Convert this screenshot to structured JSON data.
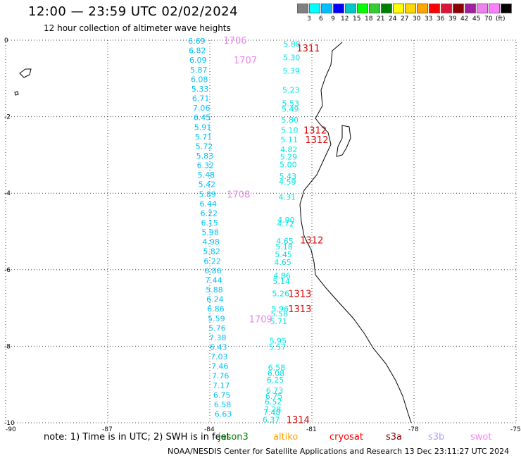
{
  "title": "12:00 — 23:59 UTC 02/02/2024",
  "subtitle": "12 hour collection of altimeter wave heights",
  "legend": {
    "unit": "(ft)",
    "colors": [
      "#808080",
      "#00ffff",
      "#00bfff",
      "#0000ff",
      "#00c8c8",
      "#00ff00",
      "#32cd32",
      "#008000",
      "#ffff00",
      "#ffd700",
      "#ffa500",
      "#ff0000",
      "#dc143c",
      "#8b0000",
      "#a020a0",
      "#ee82ee",
      "#ff80ff",
      "#000000"
    ],
    "labels": [
      "3",
      "6",
      "9",
      "12",
      "15",
      "18",
      "21",
      "24",
      "27",
      "30",
      "33",
      "36",
      "39",
      "42",
      "45",
      "70"
    ]
  },
  "axes": {
    "x_ticks": [
      "-90",
      "-87",
      "-84",
      "-81",
      "-78",
      "-75"
    ],
    "y_ticks": [
      "0",
      "-2",
      "-4",
      "-6",
      "-8",
      "-10"
    ]
  },
  "tracks": [
    {
      "satellite": "jason3",
      "color": "#00bfff",
      "points": [
        {
          "lon": -84.35,
          "lat": -0.02,
          "v": "6.69"
        },
        {
          "lon": -84.33,
          "lat": -0.27,
          "v": "6.82"
        },
        {
          "lon": -84.31,
          "lat": -0.52,
          "v": "6.09"
        },
        {
          "lon": -84.29,
          "lat": -0.77,
          "v": "5.87"
        },
        {
          "lon": -84.27,
          "lat": -1.02,
          "v": "6.08"
        },
        {
          "lon": -84.25,
          "lat": -1.27,
          "v": "5.33"
        },
        {
          "lon": -84.23,
          "lat": -1.52,
          "v": "6.71"
        },
        {
          "lon": -84.21,
          "lat": -1.77,
          "v": "7.06"
        },
        {
          "lon": -84.19,
          "lat": -2.02,
          "v": "6.45"
        },
        {
          "lon": -84.17,
          "lat": -2.27,
          "v": "5.91"
        },
        {
          "lon": -84.15,
          "lat": -2.52,
          "v": "5.71"
        },
        {
          "lon": -84.13,
          "lat": -2.77,
          "v": "5.72"
        },
        {
          "lon": -84.11,
          "lat": -3.02,
          "v": "5.83"
        },
        {
          "lon": -84.09,
          "lat": -3.27,
          "v": "6.32"
        },
        {
          "lon": -84.07,
          "lat": -3.52,
          "v": "5.48"
        },
        {
          "lon": -84.05,
          "lat": -3.77,
          "v": "5.42"
        },
        {
          "lon": -84.03,
          "lat": -4.02,
          "v": "5.89"
        },
        {
          "lon": -84.01,
          "lat": -4.27,
          "v": "6.44"
        },
        {
          "lon": -83.99,
          "lat": -4.52,
          "v": "6.22"
        },
        {
          "lon": -83.97,
          "lat": -4.77,
          "v": "6.15"
        },
        {
          "lon": -83.95,
          "lat": -5.02,
          "v": "5.98"
        },
        {
          "lon": -83.93,
          "lat": -5.27,
          "v": "4.98"
        },
        {
          "lon": -83.91,
          "lat": -5.52,
          "v": "5.82"
        },
        {
          "lon": -83.89,
          "lat": -5.77,
          "v": "6.22"
        },
        {
          "lon": -83.87,
          "lat": -6.02,
          "v": "6.86"
        },
        {
          "lon": -83.85,
          "lat": -6.27,
          "v": "7.44"
        },
        {
          "lon": -83.83,
          "lat": -6.52,
          "v": "5.88"
        },
        {
          "lon": -83.81,
          "lat": -6.77,
          "v": "6.24"
        },
        {
          "lon": -83.79,
          "lat": -7.02,
          "v": "6.86"
        },
        {
          "lon": -83.77,
          "lat": -7.27,
          "v": "5.59"
        },
        {
          "lon": -83.75,
          "lat": -7.52,
          "v": "5.76"
        },
        {
          "lon": -83.73,
          "lat": -7.77,
          "v": "7.38"
        },
        {
          "lon": -83.71,
          "lat": -8.02,
          "v": "6.43"
        },
        {
          "lon": -83.69,
          "lat": -8.27,
          "v": "7.03"
        },
        {
          "lon": -83.67,
          "lat": -8.52,
          "v": "7.46"
        },
        {
          "lon": -83.65,
          "lat": -8.77,
          "v": "7.76"
        },
        {
          "lon": -83.63,
          "lat": -9.02,
          "v": "7.17"
        },
        {
          "lon": -83.61,
          "lat": -9.27,
          "v": "6.75"
        },
        {
          "lon": -83.59,
          "lat": -9.52,
          "v": "6.58"
        },
        {
          "lon": -83.57,
          "lat": -9.77,
          "v": "6.63"
        }
      ]
    },
    {
      "satellite": "altika",
      "color": "#00e5e5",
      "points": [
        {
          "lon": -81.55,
          "lat": -0.1,
          "v": "5.88"
        },
        {
          "lon": -81.56,
          "lat": -0.45,
          "v": "5.30"
        },
        {
          "lon": -81.57,
          "lat": -0.8,
          "v": "5.39"
        },
        {
          "lon": -81.58,
          "lat": -1.3,
          "v": "5.23"
        },
        {
          "lon": -81.59,
          "lat": -1.65,
          "v": "5.53"
        },
        {
          "lon": -81.6,
          "lat": -1.8,
          "v": "5.49"
        },
        {
          "lon": -81.61,
          "lat": -2.08,
          "v": "5.80"
        },
        {
          "lon": -81.62,
          "lat": -2.35,
          "v": "5.10"
        },
        {
          "lon": -81.63,
          "lat": -2.6,
          "v": "5.11"
        },
        {
          "lon": -81.64,
          "lat": -2.85,
          "v": "4.82"
        },
        {
          "lon": -81.65,
          "lat": -3.05,
          "v": "5.29"
        },
        {
          "lon": -81.66,
          "lat": -3.25,
          "v": "5.00"
        },
        {
          "lon": -81.67,
          "lat": -3.55,
          "v": "5.43"
        },
        {
          "lon": -81.68,
          "lat": -3.7,
          "v": "4.59"
        },
        {
          "lon": -81.69,
          "lat": -4.1,
          "v": "4.31"
        },
        {
          "lon": -81.72,
          "lat": -4.7,
          "v": "4.90"
        },
        {
          "lon": -81.74,
          "lat": -4.8,
          "v": "4.72"
        },
        {
          "lon": -81.76,
          "lat": -5.25,
          "v": "4.65"
        },
        {
          "lon": -81.78,
          "lat": -5.4,
          "v": "5.18"
        },
        {
          "lon": -81.8,
          "lat": -5.6,
          "v": "5.45"
        },
        {
          "lon": -81.82,
          "lat": -5.8,
          "v": "4.65"
        },
        {
          "lon": -81.84,
          "lat": -6.15,
          "v": "4.86"
        },
        {
          "lon": -81.86,
          "lat": -6.3,
          "v": "5.14"
        },
        {
          "lon": -81.88,
          "lat": -6.62,
          "v": "5.26"
        },
        {
          "lon": -81.9,
          "lat": -7.02,
          "v": "5.96"
        },
        {
          "lon": -81.92,
          "lat": -7.15,
          "v": "5.58"
        },
        {
          "lon": -81.94,
          "lat": -7.35,
          "v": "5.71"
        },
        {
          "lon": -81.96,
          "lat": -7.85,
          "v": "5.95"
        },
        {
          "lon": -81.98,
          "lat": -8.02,
          "v": "5.57"
        },
        {
          "lon": -82.0,
          "lat": -8.55,
          "v": "6.58"
        },
        {
          "lon": -82.02,
          "lat": -8.7,
          "v": "6.08"
        },
        {
          "lon": -82.04,
          "lat": -8.88,
          "v": "6.25"
        },
        {
          "lon": -82.06,
          "lat": -9.15,
          "v": "6.73"
        },
        {
          "lon": -82.08,
          "lat": -9.3,
          "v": "6.75"
        },
        {
          "lon": -82.1,
          "lat": -9.45,
          "v": "6.52"
        },
        {
          "lon": -82.12,
          "lat": -9.65,
          "v": "7.28"
        },
        {
          "lon": -82.14,
          "lat": -9.72,
          "v": "7.48"
        },
        {
          "lon": -82.16,
          "lat": -9.92,
          "v": "6.37"
        }
      ]
    }
  ],
  "time_labels": [
    {
      "lon": -83.35,
      "lat": 0.0,
      "text": "1706",
      "color": "#ee82ee"
    },
    {
      "lon": -83.05,
      "lat": -0.52,
      "text": "1707",
      "color": "#ee82ee"
    },
    {
      "lon": -83.25,
      "lat": -4.02,
      "text": "1708",
      "color": "#ee82ee"
    },
    {
      "lon": -82.6,
      "lat": -7.28,
      "text": "1709",
      "color": "#ee82ee"
    },
    {
      "lon": -81.2,
      "lat": -0.2,
      "text": "1311",
      "color": "#dd0000"
    },
    {
      "lon": -81.0,
      "lat": -2.35,
      "text": "1312",
      "color": "#dd0000"
    },
    {
      "lon": -80.95,
      "lat": -2.6,
      "text": "1312",
      "color": "#dd0000"
    },
    {
      "lon": -81.1,
      "lat": -5.22,
      "text": "1312",
      "color": "#dd0000"
    },
    {
      "lon": -81.45,
      "lat": -6.62,
      "text": "1313",
      "color": "#dd0000"
    },
    {
      "lon": -81.45,
      "lat": -7.02,
      "text": "1313",
      "color": "#dd0000"
    },
    {
      "lon": -81.5,
      "lat": -9.92,
      "text": "1314",
      "color": "#dd0000"
    }
  ],
  "note": "note:  1) Time is in UTC; 2) SWH is in feet",
  "satellites": [
    {
      "name": "jason3",
      "color": "#008000"
    },
    {
      "name": "altiko",
      "color": "#ffa500"
    },
    {
      "name": "cryosat",
      "color": "#ff0000"
    },
    {
      "name": "s3a",
      "color": "#8b0000"
    },
    {
      "name": "s3b",
      "color": "#b0a0ff"
    },
    {
      "name": "swot",
      "color": "#ff80ff"
    }
  ],
  "credit": "NOAA/NESDIS Center for Satellite Applications and Research   13 Dec 23:11:27 UTC 2024"
}
